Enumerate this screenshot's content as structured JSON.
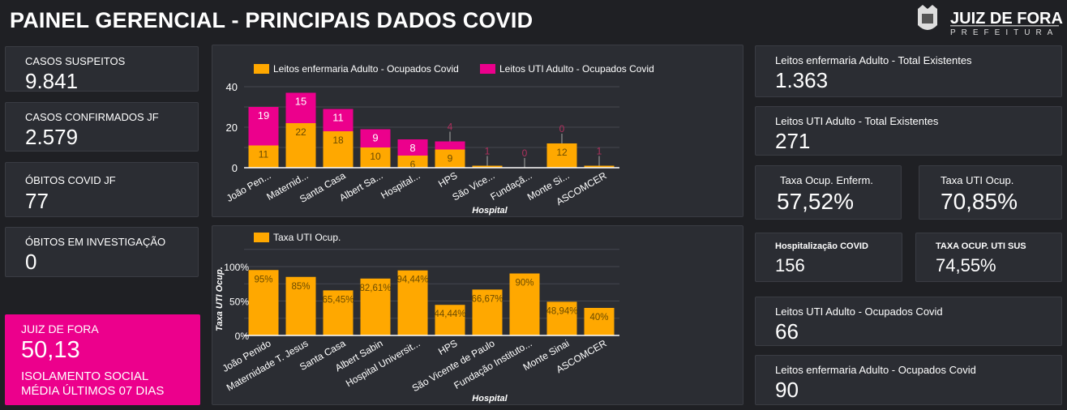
{
  "header": {
    "title": "PAINEL GERENCIAL - PRINCIPAIS DADOS COVID",
    "logo_main": "JUIZ DE FORA",
    "logo_sub": "PREFEITURA"
  },
  "left_cards": [
    {
      "label": "CASOS SUSPEITOS",
      "value": "9.841"
    },
    {
      "label": "CASOS CONFIRMADOS JF",
      "value": "2.579"
    },
    {
      "label": "ÓBITOS COVID JF",
      "value": "77"
    },
    {
      "label": "ÓBITOS EM INVESTIGAÇÃO",
      "value": "0"
    }
  ],
  "isolamento": {
    "label": "JUIZ DE FORA",
    "value": "50,13",
    "sub1": "ISOLAMENTO SOCIAL",
    "sub2": "MÉDIA ÚLTIMOS 07 DIAS"
  },
  "right_cards": [
    {
      "label": "Leitos enfermaria Adulto - Total Existentes",
      "value": "1.363"
    },
    {
      "label": "Leitos UTI Adulto - Total Existentes",
      "value": "271"
    },
    {
      "label": "Taxa Ocup. Enferm.",
      "value": "57,52%"
    },
    {
      "label": "Taxa UTI Ocup.",
      "value": "70,85%"
    },
    {
      "label": "Hospitalização COVID",
      "value": "156"
    },
    {
      "label": "TAXA OCUP. UTI SUS",
      "value": "74,55%"
    },
    {
      "label": "Leitos UTI Adulto - Ocupados Covid",
      "value": "66"
    },
    {
      "label": "Leitos enfermaria Adulto - Ocupados Covid",
      "value": "90"
    }
  ],
  "colors": {
    "orange": "#ffa800",
    "pink": "#ec008c"
  },
  "chart_data": [
    {
      "type": "bar",
      "stacked": true,
      "xlabel": "Hospital",
      "ylabel": "",
      "ylim": [
        0,
        40
      ],
      "yticks": [
        "0",
        "20",
        "40"
      ],
      "legend": "top-left",
      "categories": [
        "João Pen...",
        "Maternid...",
        "Santa Casa",
        "Albert Sa...",
        "Hospital...",
        "HPS",
        "São Vice...",
        "Fundaçã...",
        "Monte Si...",
        "ASCOMCER"
      ],
      "series": [
        {
          "name": "Leitos enfermaria Adulto - Ocupados Covid",
          "values": [
            11,
            22,
            18,
            10,
            6,
            9,
            1,
            0,
            12,
            1
          ]
        },
        {
          "name": "Leitos UTI Adulto - Ocupados Covid",
          "values": [
            19,
            15,
            11,
            9,
            8,
            4,
            0,
            0,
            0,
            0
          ]
        }
      ],
      "top_labels": [
        "19",
        "15",
        "11",
        "9",
        "8",
        "4",
        "1",
        "0",
        "0",
        "1"
      ]
    },
    {
      "type": "bar",
      "xlabel": "Hospital",
      "ylabel": "Taxa UTI Ocup.",
      "ylim": [
        0,
        125
      ],
      "yticks": [
        "0%",
        "50%",
        "100%"
      ],
      "legend": "top-left",
      "categories": [
        "João Penido",
        "Maternidade T. Jesus",
        "Santa Casa",
        "Albert Sabin",
        "Hospital Universit...",
        "HPS",
        "São Vicente de Paulo",
        "Fundação Instituto...",
        "Monte Sinai",
        "ASCOMCER"
      ],
      "series": [
        {
          "name": "Taxa UTI Ocup.",
          "values": [
            95,
            85,
            65.45,
            82.61,
            94.44,
            44.44,
            66.67,
            90,
            48.94,
            40
          ]
        }
      ],
      "labels": [
        "95%",
        "85%",
        "65,45%",
        "82,61%",
        "94,44%",
        "44,44%",
        "66,67%",
        "90%",
        "48,94%",
        "40%"
      ]
    }
  ]
}
